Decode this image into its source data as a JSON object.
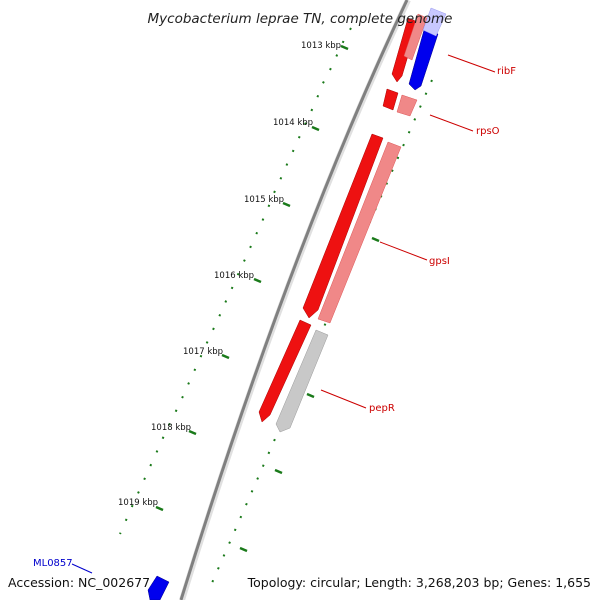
{
  "title": "Mycobacterium leprae TN, complete genome",
  "footer": {
    "accession": "Accession: NC_002677",
    "summary": "Topology: circular; Length: 3,268,203 bp; Genes: 1,655"
  },
  "colors": {
    "forward_gene": "#ee1111",
    "forward_gene_light": "#f08888",
    "reverse_gene": "#0000ee",
    "reverse_gene_light": "#c8c8ff",
    "other_feature": "#c8c8c8",
    "tick": "#1a7a1a",
    "backbone": "#888888",
    "label_red": "#cc0000",
    "label_blue": "#0000cc"
  },
  "ticks": [
    {
      "label": "1013 kbp"
    },
    {
      "label": "1014 kbp"
    },
    {
      "label": "1015 kbp"
    },
    {
      "label": "1016 kbp"
    },
    {
      "label": "1017 kbp"
    },
    {
      "label": "1018 kbp"
    },
    {
      "label": "1019 kbp"
    }
  ],
  "gene_labels": [
    {
      "name": "ribF",
      "color": "label_red"
    },
    {
      "name": "rpsO",
      "color": "label_red"
    },
    {
      "name": "gpsI",
      "color": "label_red"
    },
    {
      "name": "pepR",
      "color": "label_red"
    },
    {
      "name": "ML0857",
      "color": "label_blue"
    }
  ]
}
